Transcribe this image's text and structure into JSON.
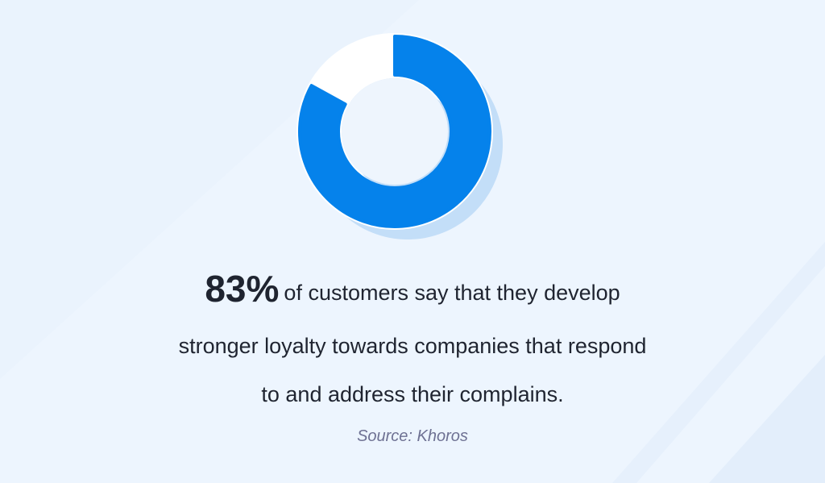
{
  "chart_data": {
    "type": "pie",
    "style": "donut",
    "categories": [
      "highlighted",
      "remaining"
    ],
    "values": [
      83,
      17
    ],
    "colors": {
      "highlighted": "#0582eb",
      "remaining": "#ffffff",
      "shadow": "#c3def8"
    }
  },
  "headline": {
    "stat": "83%",
    "line1": "of customers say that they develop",
    "line2": "stronger loyalty towards companies that respond",
    "line3": "to and address their complains."
  },
  "source": "Source: Khoros",
  "colors": {
    "background": "#eaf3fd",
    "text": "#1f2430",
    "source": "#6e7193"
  }
}
